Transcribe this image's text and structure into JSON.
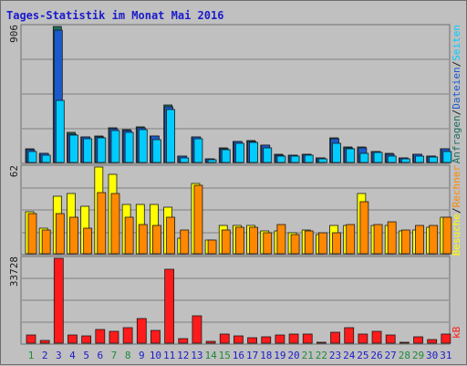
{
  "chart_data": {
    "title": "Tages-Statistik im Monat Mai 2016",
    "type": "bar",
    "x": [
      "1",
      "2",
      "3",
      "4",
      "5",
      "6",
      "7",
      "8",
      "9",
      "10",
      "11",
      "12",
      "13",
      "14",
      "15",
      "16",
      "17",
      "18",
      "19",
      "20",
      "21",
      "22",
      "23",
      "24",
      "25",
      "26",
      "27",
      "28",
      "29",
      "30",
      "31"
    ],
    "weekend_days": [
      "1",
      "7",
      "8",
      "14",
      "15",
      "21",
      "22",
      "28",
      "29"
    ],
    "panels": [
      {
        "id": "top",
        "ymax_label": "906",
        "ymax": 906,
        "series": [
          {
            "name": "Anfragen",
            "color": "#1b6e5e",
            "values": [
              91,
              61,
              906,
              198,
              173,
              178,
              234,
              217,
              237,
              179,
              385,
              43,
              173,
              24,
              98,
              142,
              144,
              118,
              53,
              49,
              57,
              33,
              163,
              103,
              104,
              73,
              59,
              33,
              56,
              45,
              93
            ]
          },
          {
            "name": "Dateien",
            "color": "#1a5acc",
            "values": [
              87,
              58,
              883,
              191,
              168,
              173,
              227,
              211,
              230,
              175,
              372,
              41,
              169,
              22,
              94,
              137,
              140,
              114,
              50,
              46,
              54,
              30,
              157,
              99,
              100,
              70,
              56,
              30,
              52,
              42,
              89
            ]
          },
          {
            "name": "Seiten",
            "color": "#00ccff",
            "values": [
              70,
              50,
              415,
              185,
              160,
              165,
              215,
              200,
              220,
              150,
              355,
              30,
              160,
              18,
              85,
              130,
              135,
              95,
              45,
              40,
              50,
              25,
              125,
              90,
              60,
              65,
              45,
              25,
              45,
              35,
              70
            ]
          }
        ]
      },
      {
        "id": "middle",
        "ymax_label": "62",
        "ymax": 62,
        "series": [
          {
            "name": "Besuche",
            "color": "#ffff00",
            "values": [
              30,
              18,
              41,
              43,
              34,
              62,
              57,
              35,
              35,
              35,
              33,
              11,
              50,
              10,
              20,
              20,
              20,
              16,
              16,
              15,
              17,
              14,
              20,
              20,
              43,
              20,
              20,
              16,
              17,
              19,
              26
            ]
          },
          {
            "name": "Rechner",
            "color": "#ff8800",
            "values": [
              29,
              17,
              29,
              26,
              18,
              44,
              43,
              26,
              21,
              20,
              26,
              17,
              49,
              10,
              17,
              19,
              19,
              15,
              21,
              14,
              16,
              15,
              15,
              21,
              37,
              21,
              23,
              17,
              20,
              20,
              26
            ]
          }
        ]
      },
      {
        "id": "bottom",
        "ymax_label": "33728",
        "ymax": 33728,
        "series": [
          {
            "name": "kB",
            "color": "#ff1b1b",
            "values": [
              3200,
              1200,
              33728,
              3200,
              3000,
              5500,
              4800,
              6100,
              9900,
              4900,
              29400,
              1800,
              10700,
              600,
              3500,
              2900,
              2300,
              2700,
              3200,
              3600,
              3800,
              300,
              4400,
              6100,
              3700,
              4600,
              3300,
              500,
              2600,
              1300,
              3800
            ]
          }
        ]
      }
    ]
  },
  "right_legend": {
    "top": [
      {
        "text": "Anfragen",
        "color": "#1b6e5e"
      },
      {
        "text": "/",
        "color": "#1a1a1a"
      },
      {
        "text": "Dateien",
        "color": "#1a5acc"
      },
      {
        "text": "/",
        "color": "#1a1a1a"
      },
      {
        "text": "Seiten",
        "color": "#00ccff"
      }
    ],
    "middle": [
      {
        "text": "Besuche",
        "color": "#ffff00"
      },
      {
        "text": "/",
        "color": "#1a1a1a"
      },
      {
        "text": "Rechner",
        "color": "#ff8800"
      }
    ],
    "bottom": [
      {
        "text": "kB",
        "color": "#ff1b1b"
      }
    ]
  },
  "colors": {
    "weekday_label": "#1b1bcc",
    "weekend_label": "#1b8a3a"
  }
}
